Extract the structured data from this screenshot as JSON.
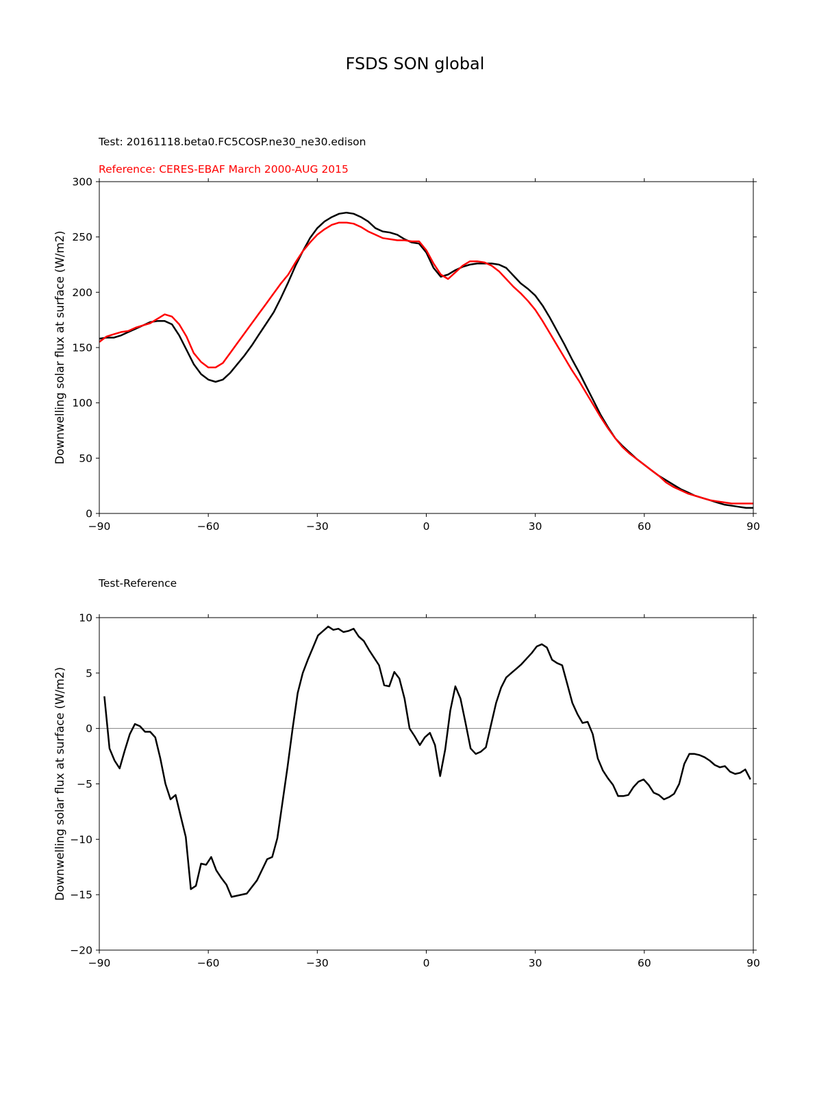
{
  "suptitle": "FSDS SON global",
  "colors": {
    "test": "#000000",
    "reference": "#ff0000",
    "zero_line": "#808080"
  },
  "chart_data": [
    {
      "type": "line",
      "title_lines": [
        {
          "text": "Test: 20161118.beta0.FC5COSP.ne30_ne30.edison",
          "color": "#000000"
        },
        {
          "text": "Reference: CERES-EBAF March 2000-AUG 2015",
          "color": "#ff0000"
        }
      ],
      "xlabel": "",
      "ylabel": "Downwelling solar flux at surface (W/m2)",
      "xlim": [
        -90,
        90
      ],
      "ylim": [
        0,
        300
      ],
      "xticks": [
        -90,
        -60,
        -30,
        0,
        30,
        60,
        90
      ],
      "xtick_labels": [
        "−90",
        "−60",
        "−30",
        "0",
        "30",
        "60",
        "90"
      ],
      "yticks": [
        0,
        50,
        100,
        150,
        200,
        250,
        300
      ],
      "ytick_labels": [
        "0",
        "50",
        "100",
        "150",
        "200",
        "250",
        "300"
      ],
      "grid": false,
      "series": [
        {
          "key": "test",
          "color": "#000000",
          "x": [
            -90,
            -88,
            -86,
            -84,
            -82,
            -80,
            -78,
            -76,
            -74,
            -72,
            -70,
            -68,
            -66,
            -64,
            -62,
            -60,
            -58,
            -56,
            -54,
            -52,
            -50,
            -48,
            -46,
            -44,
            -42,
            -40,
            -38,
            -36,
            -34,
            -32,
            -30,
            -28,
            -26,
            -24,
            -22,
            -20,
            -18,
            -16,
            -14,
            -12,
            -10,
            -8,
            -6,
            -4,
            -2,
            0,
            2,
            4,
            6,
            8,
            10,
            12,
            14,
            16,
            18,
            20,
            22,
            24,
            26,
            28,
            30,
            32,
            34,
            36,
            38,
            40,
            42,
            44,
            46,
            48,
            50,
            52,
            54,
            56,
            58,
            60,
            62,
            64,
            66,
            68,
            70,
            72,
            74,
            76,
            78,
            80,
            82,
            84,
            86,
            88,
            90
          ],
          "y": [
            158,
            159,
            159,
            161,
            164,
            167,
            170,
            173,
            174,
            174,
            171,
            161,
            148,
            135,
            126,
            121,
            119,
            121,
            127,
            135,
            143,
            152,
            162,
            172,
            182,
            195,
            209,
            224,
            237,
            249,
            258,
            264,
            268,
            271,
            272,
            271,
            268,
            264,
            258,
            255,
            254,
            252,
            248,
            245,
            244,
            236,
            222,
            214,
            216,
            220,
            223,
            225,
            226,
            226,
            226,
            225,
            222,
            215,
            208,
            203,
            197,
            188,
            177,
            165,
            153,
            140,
            128,
            115,
            102,
            89,
            78,
            68,
            61,
            55,
            49,
            44,
            39,
            34,
            30,
            26,
            22,
            19,
            16,
            14,
            12,
            10,
            8,
            7,
            6,
            5,
            5
          ]
        },
        {
          "key": "reference",
          "color": "#ff0000",
          "x": [
            -90,
            -88,
            -86,
            -84,
            -82,
            -80,
            -78,
            -76,
            -74,
            -72,
            -70,
            -68,
            -66,
            -64,
            -62,
            -60,
            -58,
            -56,
            -54,
            -52,
            -50,
            -48,
            -46,
            -44,
            -42,
            -40,
            -38,
            -36,
            -34,
            -32,
            -30,
            -28,
            -26,
            -24,
            -22,
            -20,
            -18,
            -16,
            -14,
            -12,
            -10,
            -8,
            -6,
            -4,
            -2,
            0,
            2,
            4,
            6,
            8,
            10,
            12,
            14,
            16,
            18,
            20,
            22,
            24,
            26,
            28,
            30,
            32,
            34,
            36,
            38,
            40,
            42,
            44,
            46,
            48,
            50,
            52,
            54,
            56,
            58,
            60,
            62,
            64,
            66,
            68,
            70,
            72,
            74,
            76,
            78,
            80,
            82,
            84,
            86,
            88,
            90
          ],
          "y": [
            155,
            160,
            162,
            164,
            165,
            168,
            170,
            172,
            176,
            180,
            178,
            171,
            160,
            145,
            137,
            132,
            132,
            136,
            145,
            154,
            163,
            172,
            181,
            190,
            199,
            208,
            216,
            227,
            237,
            245,
            252,
            257,
            261,
            263,
            263,
            262,
            259,
            255,
            252,
            249,
            248,
            247,
            247,
            246,
            246,
            238,
            226,
            216,
            212,
            218,
            224,
            228,
            228,
            227,
            224,
            219,
            212,
            205,
            199,
            192,
            184,
            174,
            163,
            152,
            141,
            130,
            120,
            109,
            98,
            87,
            77,
            68,
            60,
            54,
            49,
            44,
            39,
            34,
            28,
            24,
            21,
            18,
            16,
            14,
            12,
            11,
            10,
            9,
            9,
            9,
            9
          ]
        }
      ]
    },
    {
      "type": "line",
      "title_lines": [
        {
          "text": "Test-Reference",
          "color": "#000000"
        }
      ],
      "xlabel": "",
      "ylabel": "Downwelling solar flux at surface (W/m2)",
      "xlim": [
        -90,
        90
      ],
      "ylim": [
        -20,
        10
      ],
      "xticks": [
        -90,
        -60,
        -30,
        0,
        30,
        60,
        90
      ],
      "xtick_labels": [
        "−90",
        "−60",
        "−30",
        "0",
        "30",
        "60",
        "90"
      ],
      "yticks": [
        -20,
        -15,
        -10,
        -5,
        0,
        5,
        10
      ],
      "ytick_labels": [
        "−20",
        "−15",
        "−10",
        "−5",
        "0",
        "5",
        "10"
      ],
      "grid": false,
      "zero_line": true,
      "series": [
        {
          "key": "difference",
          "color": "#000000",
          "x": [
            -88.6,
            -87.2,
            -85.8,
            -84.4,
            -83.0,
            -81.6,
            -80.2,
            -78.8,
            -77.4,
            -76.0,
            -74.6,
            -73.2,
            -71.8,
            -70.4,
            -69.0,
            -67.6,
            -66.2,
            -64.8,
            -63.4,
            -62.0,
            -60.6,
            -59.2,
            -57.8,
            -56.4,
            -55.0,
            -53.6,
            -49.4,
            -46.6,
            -43.8,
            -42.4,
            -41.0,
            -39.6,
            -38.2,
            -36.8,
            -35.4,
            -34.0,
            -32.6,
            -31.2,
            -29.8,
            -28.4,
            -27.0,
            -25.6,
            -24.2,
            -22.8,
            -21.4,
            -20.0,
            -18.6,
            -17.2,
            -15.8,
            -14.4,
            -13.0,
            -11.6,
            -10.2,
            -8.8,
            -7.4,
            -6.0,
            -4.6,
            -3.2,
            -1.8,
            -0.4,
            1.0,
            2.4,
            3.8,
            5.2,
            6.6,
            8.0,
            9.4,
            10.8,
            12.2,
            13.6,
            15.0,
            16.4,
            17.8,
            19.2,
            20.6,
            22.0,
            23.4,
            24.8,
            26.2,
            27.6,
            29.0,
            30.4,
            31.8,
            33.2,
            34.6,
            36.0,
            37.4,
            38.8,
            40.2,
            41.6,
            43.0,
            44.4,
            45.8,
            47.2,
            48.6,
            50.0,
            51.4,
            52.8,
            54.2,
            55.6,
            57.0,
            58.4,
            59.8,
            61.2,
            62.6,
            64.0,
            65.4,
            66.8,
            68.2,
            69.6,
            71.0,
            72.4,
            73.8,
            75.2,
            76.6,
            78.0,
            79.4,
            80.8,
            82.2,
            83.6,
            85.0,
            86.4,
            87.8,
            89.2
          ],
          "y": [
            2.9,
            -1.8,
            -2.9,
            -3.6,
            -2.0,
            -0.5,
            0.4,
            0.2,
            -0.3,
            -0.3,
            -0.8,
            -2.7,
            -5.0,
            -6.4,
            -6.0,
            -7.9,
            -9.8,
            -14.5,
            -14.2,
            -12.2,
            -12.3,
            -11.6,
            -12.8,
            -13.5,
            -14.1,
            -15.2,
            -14.9,
            -13.7,
            -11.8,
            -11.6,
            -9.9,
            -6.7,
            -3.5,
            0.0,
            3.2,
            5.0,
            6.2,
            7.3,
            8.4,
            8.8,
            9.2,
            8.9,
            9.0,
            8.7,
            8.8,
            9.0,
            8.3,
            7.9,
            7.1,
            6.4,
            5.7,
            3.9,
            3.8,
            5.1,
            4.5,
            2.7,
            0.0,
            -0.7,
            -1.5,
            -0.8,
            -0.4,
            -1.5,
            -4.3,
            -1.9,
            1.6,
            3.8,
            2.7,
            0.5,
            -1.8,
            -2.3,
            -2.1,
            -1.7,
            0.3,
            2.3,
            3.7,
            4.6,
            5.0,
            5.4,
            5.8,
            6.3,
            6.8,
            7.4,
            7.6,
            7.3,
            6.2,
            5.9,
            5.7,
            4.0,
            2.3,
            1.3,
            0.5,
            0.6,
            -0.5,
            -2.7,
            -3.8,
            -4.5,
            -5.1,
            -6.1,
            -6.1,
            -6.0,
            -5.3,
            -4.8,
            -4.6,
            -5.1,
            -5.8,
            -6.0,
            -6.4,
            -6.2,
            -5.9,
            -5.0,
            -3.2,
            -2.3,
            -2.3,
            -2.4,
            -2.6,
            -2.9,
            -3.3,
            -3.5,
            -3.4,
            -3.9,
            -4.1,
            -4.0,
            -3.7,
            -4.6
          ]
        }
      ]
    }
  ]
}
